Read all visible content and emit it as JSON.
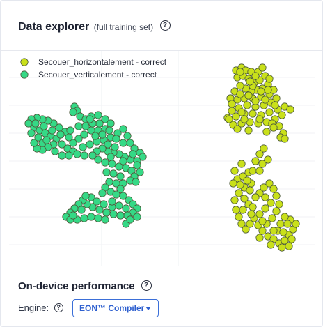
{
  "data_explorer": {
    "title": "Data explorer",
    "subtitle": "(full training set)",
    "help_icon": "question-circle-icon"
  },
  "performance": {
    "title": "On-device performance",
    "help_icon": "question-circle-icon",
    "engine_label": "Engine:",
    "engine_value": "EON™ Compiler",
    "dropdown_icon": "caret-down-icon"
  },
  "colors": {
    "horizontal": "#c9e01a",
    "vertical": "#35d986",
    "point_stroke": "#4d5a3a",
    "accent": "#2d5fcf"
  },
  "chart_data": {
    "type": "scatter",
    "title": "",
    "xlabel": "",
    "ylabel": "",
    "grid": true,
    "legend_position": "top-left",
    "series": [
      {
        "name": "Secouer_horizontalement - correct",
        "color": "#c9e01a",
        "points": [
          [
            338,
            100
          ],
          [
            346,
            96
          ],
          [
            352,
            100
          ],
          [
            340,
            110
          ],
          [
            348,
            108
          ],
          [
            356,
            112
          ],
          [
            364,
            118
          ],
          [
            372,
            114
          ],
          [
            380,
            108
          ],
          [
            384,
            120
          ],
          [
            376,
            126
          ],
          [
            368,
            128
          ],
          [
            360,
            130
          ],
          [
            352,
            126
          ],
          [
            344,
            122
          ],
          [
            336,
            130
          ],
          [
            330,
            140
          ],
          [
            340,
            142
          ],
          [
            350,
            140
          ],
          [
            362,
            140
          ],
          [
            374,
            138
          ],
          [
            386,
            134
          ],
          [
            392,
            128
          ],
          [
            396,
            140
          ],
          [
            388,
            146
          ],
          [
            378,
            150
          ],
          [
            366,
            152
          ],
          [
            354,
            150
          ],
          [
            342,
            154
          ],
          [
            332,
            158
          ],
          [
            326,
            168
          ],
          [
            338,
            166
          ],
          [
            350,
            162
          ],
          [
            362,
            162
          ],
          [
            374,
            164
          ],
          [
            386,
            160
          ],
          [
            398,
            156
          ],
          [
            408,
            152
          ],
          [
            404,
            164
          ],
          [
            394,
            170
          ],
          [
            382,
            174
          ],
          [
            370,
            176
          ],
          [
            358,
            174
          ],
          [
            346,
            176
          ],
          [
            334,
            178
          ],
          [
            328,
            170
          ],
          [
            400,
            180
          ],
          [
            406,
            190
          ],
          [
            402,
            196
          ],
          [
            408,
            198
          ],
          [
            360,
            102
          ],
          [
            370,
            102
          ],
          [
            344,
            102
          ],
          [
            386,
            112
          ],
          [
            362,
            122
          ],
          [
            374,
            130
          ],
          [
            356,
            136
          ],
          [
            344,
            134
          ],
          [
            366,
            144
          ],
          [
            380,
            142
          ],
          [
            394,
            150
          ],
          [
            350,
            170
          ],
          [
            372,
            170
          ],
          [
            416,
            156
          ],
          [
            390,
            176
          ],
          [
            332,
            148
          ],
          [
            384,
            128
          ],
          [
            366,
            108
          ],
          [
            376,
            96
          ],
          [
            358,
            116
          ],
          [
            346,
            160
          ],
          [
            382,
            188
          ],
          [
            392,
            182
          ],
          [
            356,
            186
          ],
          [
            340,
            184
          ],
          [
            378,
            212
          ],
          [
            372,
            220
          ],
          [
            366,
            230
          ],
          [
            376,
            234
          ],
          [
            384,
            228
          ],
          [
            346,
            234
          ],
          [
            336,
            244
          ],
          [
            340,
            256
          ],
          [
            348,
            252
          ],
          [
            356,
            246
          ],
          [
            360,
            262
          ],
          [
            350,
            268
          ],
          [
            342,
            276
          ],
          [
            350,
            284
          ],
          [
            356,
            292
          ],
          [
            348,
            300
          ],
          [
            342,
            310
          ],
          [
            346,
            320
          ],
          [
            352,
            328
          ],
          [
            358,
            320
          ],
          [
            364,
            312
          ],
          [
            372,
            306
          ],
          [
            380,
            298
          ],
          [
            388,
            290
          ],
          [
            380,
            282
          ],
          [
            372,
            276
          ],
          [
            378,
            268
          ],
          [
            386,
            262
          ],
          [
            392,
            270
          ],
          [
            396,
            280
          ],
          [
            400,
            292
          ],
          [
            396,
            302
          ],
          [
            390,
            312
          ],
          [
            382,
            320
          ],
          [
            376,
            330
          ],
          [
            384,
            338
          ],
          [
            392,
            342
          ],
          [
            400,
            348
          ],
          [
            408,
            344
          ],
          [
            414,
            336
          ],
          [
            420,
            328
          ],
          [
            424,
            320
          ],
          [
            416,
            314
          ],
          [
            408,
            310
          ],
          [
            402,
            320
          ],
          [
            398,
            330
          ],
          [
            406,
            332
          ],
          [
            412,
            320
          ],
          [
            392,
            330
          ],
          [
            370,
            322
          ],
          [
            362,
            296
          ],
          [
            366,
            282
          ],
          [
            358,
            272
          ],
          [
            354,
            258
          ],
          [
            344,
            264
          ],
          [
            334,
            262
          ],
          [
            362,
            244
          ],
          [
            372,
            244
          ],
          [
            336,
            286
          ],
          [
            338,
            300
          ],
          [
            360,
            306
          ],
          [
            376,
            316
          ],
          [
            372,
            340
          ],
          [
            388,
            350
          ],
          [
            404,
            354
          ],
          [
            414,
            352
          ],
          [
            418,
            342
          ]
        ]
      },
      {
        "name": "Secouer_verticalement - correct",
        "color": "#35d986",
        "points": [
          [
            106,
            152
          ],
          [
            110,
            158
          ],
          [
            104,
            160
          ],
          [
            114,
            166
          ],
          [
            122,
            170
          ],
          [
            130,
            166
          ],
          [
            140,
            164
          ],
          [
            150,
            170
          ],
          [
            158,
            176
          ],
          [
            150,
            184
          ],
          [
            140,
            186
          ],
          [
            130,
            186
          ],
          [
            120,
            192
          ],
          [
            112,
            198
          ],
          [
            104,
            204
          ],
          [
            98,
            196
          ],
          [
            92,
            188
          ],
          [
            84,
            182
          ],
          [
            76,
            176
          ],
          [
            68,
            172
          ],
          [
            60,
            170
          ],
          [
            52,
            168
          ],
          [
            44,
            170
          ],
          [
            40,
            176
          ],
          [
            48,
            182
          ],
          [
            56,
            186
          ],
          [
            64,
            190
          ],
          [
            72,
            194
          ],
          [
            80,
            198
          ],
          [
            76,
            206
          ],
          [
            68,
            210
          ],
          [
            60,
            214
          ],
          [
            52,
            212
          ],
          [
            48,
            204
          ],
          [
            60,
            204
          ],
          [
            88,
            206
          ],
          [
            96,
            212
          ],
          [
            104,
            216
          ],
          [
            118,
            210
          ],
          [
            128,
            206
          ],
          [
            138,
            202
          ],
          [
            148,
            200
          ],
          [
            158,
            196
          ],
          [
            168,
            190
          ],
          [
            176,
            184
          ],
          [
            182,
            194
          ],
          [
            186,
            204
          ],
          [
            192,
            212
          ],
          [
            200,
            218
          ],
          [
            204,
            224
          ],
          [
            196,
            230
          ],
          [
            186,
            228
          ],
          [
            178,
            224
          ],
          [
            170,
            220
          ],
          [
            162,
            218
          ],
          [
            154,
            216
          ],
          [
            146,
            212
          ],
          [
            138,
            216
          ],
          [
            132,
            222
          ],
          [
            140,
            228
          ],
          [
            150,
            232
          ],
          [
            160,
            234
          ],
          [
            170,
            238
          ],
          [
            180,
            240
          ],
          [
            188,
            244
          ],
          [
            192,
            252
          ],
          [
            186,
            258
          ],
          [
            176,
            262
          ],
          [
            166,
            262
          ],
          [
            156,
            260
          ],
          [
            150,
            268
          ],
          [
            158,
            274
          ],
          [
            166,
            278
          ],
          [
            176,
            280
          ],
          [
            184,
            286
          ],
          [
            190,
            292
          ],
          [
            196,
            298
          ],
          [
            190,
            304
          ],
          [
            182,
            308
          ],
          [
            172,
            308
          ],
          [
            162,
            306
          ],
          [
            152,
            304
          ],
          [
            142,
            300
          ],
          [
            132,
            296
          ],
          [
            124,
            292
          ],
          [
            118,
            286
          ],
          [
            112,
            292
          ],
          [
            106,
            298
          ],
          [
            100,
            304
          ],
          [
            94,
            310
          ],
          [
            100,
            314
          ],
          [
            110,
            314
          ],
          [
            120,
            312
          ],
          [
            130,
            310
          ],
          [
            140,
            312
          ],
          [
            150,
            314
          ],
          [
            130,
            282
          ],
          [
            122,
            280
          ],
          [
            138,
            288
          ],
          [
            148,
            292
          ],
          [
            160,
            296
          ],
          [
            170,
            294
          ],
          [
            180,
            298
          ],
          [
            160,
            288
          ],
          [
            146,
            276
          ],
          [
            152,
            246
          ],
          [
            162,
            248
          ],
          [
            172,
            252
          ],
          [
            158,
            224
          ],
          [
            176,
            230
          ],
          [
            190,
            220
          ],
          [
            166,
            198
          ],
          [
            176,
            204
          ],
          [
            156,
            186
          ],
          [
            142,
            176
          ],
          [
            132,
            176
          ],
          [
            122,
            180
          ],
          [
            112,
            180
          ],
          [
            100,
            186
          ],
          [
            86,
            192
          ],
          [
            74,
            186
          ],
          [
            62,
            180
          ],
          [
            50,
            176
          ],
          [
            44,
            190
          ],
          [
            54,
            196
          ],
          [
            66,
            200
          ],
          [
            78,
            216
          ],
          [
            88,
            222
          ],
          [
            98,
            222
          ],
          [
            110,
            220
          ],
          [
            120,
            222
          ],
          [
            196,
            236
          ],
          [
            164,
            210
          ],
          [
            154,
            206
          ],
          [
            172,
            270
          ],
          [
            116,
            300
          ],
          [
            104,
            308
          ],
          [
            180,
            320
          ],
          [
            186,
            314
          ],
          [
            196,
            310
          ],
          [
            128,
            170
          ],
          [
            136,
            194
          ],
          [
            146,
            192
          ],
          [
            194,
            260
          ],
          [
            200,
            246
          ]
        ]
      }
    ]
  }
}
